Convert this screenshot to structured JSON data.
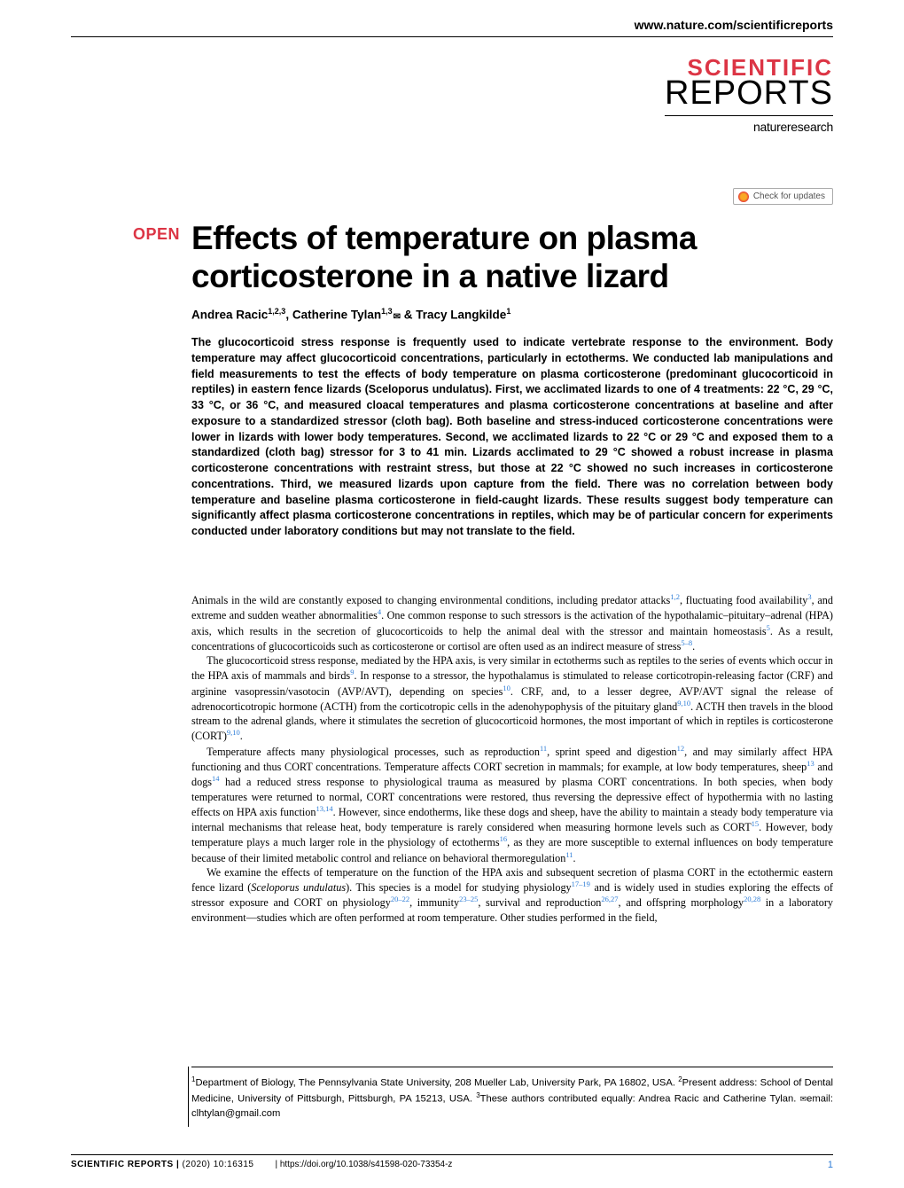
{
  "header": {
    "url": "www.nature.com/scientificreports",
    "logo_scientific": "SCIENTIFIC",
    "logo_reports": "REPORTS",
    "logo_nature": "natureresearch",
    "check_updates": "Check for updates"
  },
  "colors": {
    "accent_red": "#dc3545",
    "link_blue": "#2e7dd7",
    "text_black": "#000000",
    "background": "#ffffff"
  },
  "badge": {
    "open": "OPEN"
  },
  "title": "Effects of temperature on plasma corticosterone in a native lizard",
  "authors_html": "Andrea Racic<sup>1,2,3</sup>, Catherine Tylan<sup>1,3</sup><span class='envelope-icon'>✉</span> & Tracy Langkilde<sup>1</sup>",
  "abstract": "The glucocorticoid stress response is frequently used to indicate vertebrate response to the environment. Body temperature may affect glucocorticoid concentrations, particularly in ectotherms. We conducted lab manipulations and field measurements to test the effects of body temperature on plasma corticosterone (predominant glucocorticoid in reptiles) in eastern fence lizards (Sceloporus undulatus). First, we acclimated lizards to one of 4 treatments: 22 °C, 29 °C, 33 °C, or 36 °C, and measured cloacal temperatures and plasma corticosterone concentrations at baseline and after exposure to a standardized stressor (cloth bag). Both baseline and stress-induced corticosterone concentrations were lower in lizards with lower body temperatures. Second, we acclimated lizards to 22 °C or 29 °C and exposed them to a standardized (cloth bag) stressor for 3 to 41 min. Lizards acclimated to 29 °C showed a robust increase in plasma corticosterone concentrations with restraint stress, but those at 22 °C showed no such increases in corticosterone concentrations. Third, we measured lizards upon capture from the field. There was no correlation between body temperature and baseline plasma corticosterone in field-caught lizards. These results suggest body temperature can significantly affect plasma corticosterone concentrations in reptiles, which may be of particular concern for experiments conducted under laboratory conditions but may not translate to the field.",
  "body": {
    "p1": "Animals in the wild are constantly exposed to changing environmental conditions, including predator attacks<sup>1,2</sup>, fluctuating food availability<sup>3</sup>, and extreme and sudden weather abnormalities<sup>4</sup>. One common response to such stressors is the activation of the hypothalamic–pituitary–adrenal (HPA) axis, which results in the secretion of glucocorticoids to help the animal deal with the stressor and maintain homeostasis<sup>5</sup>. As a result, concentrations of glucocorticoids such as corticosterone or cortisol are often used as an indirect measure of stress<sup>5–8</sup>.",
    "p2": "The glucocorticoid stress response, mediated by the HPA axis, is very similar in ectotherms such as reptiles to the series of events which occur in the HPA axis of mammals and birds<sup>9</sup>. In response to a stressor, the hypothalamus is stimulated to release corticotropin-releasing factor (CRF) and arginine vasopressin/vasotocin (AVP/AVT), depending on species<sup>10</sup>. CRF, and, to a lesser degree, AVP/AVT signal the release of adrenocorticotropic hormone (ACTH) from the corticotropic cells in the adenohypophysis of the pituitary gland<sup>9,10</sup>. ACTH then travels in the blood stream to the adrenal glands, where it stimulates the secretion of glucocorticoid hormones, the most important of which in reptiles is corticosterone (CORT)<sup>9,10</sup>.",
    "p3": "Temperature affects many physiological processes, such as reproduction<sup>11</sup>, sprint speed and digestion<sup>12</sup>, and may similarly affect HPA functioning and thus CORT concentrations. Temperature affects CORT secretion in mammals; for example, at low body temperatures, sheep<sup>13</sup> and dogs<sup>14</sup> had a reduced stress response to physiological trauma as measured by plasma CORT concentrations. In both species, when body temperatures were returned to normal, CORT concentrations were restored, thus reversing the depressive effect of hypothermia with no lasting effects on HPA axis function<sup>13,14</sup>. However, since endotherms, like these dogs and sheep, have the ability to maintain a steady body temperature via internal mechanisms that release heat, body temperature is rarely considered when measuring hormone levels such as CORT<sup>15</sup>. However, body temperature plays a much larger role in the physiology of ectotherms<sup>16</sup>, as they are more susceptible to external influences on body temperature because of their limited metabolic control and reliance on behavioral thermoregulation<sup>11</sup>.",
    "p4": "We examine the effects of temperature on the function of the HPA axis and subsequent secretion of plasma CORT in the ectothermic eastern fence lizard (<em>Sceloporus undulatus</em>). This species is a model for studying physiology<sup>17–19</sup> and is widely used in studies exploring the effects of stressor exposure and CORT on physiology<sup>20–22</sup>, immunity<sup>23–25</sup>, survival and reproduction<sup>26,27</sup>, and offspring morphology<sup>20,28</sup> in a laboratory environment—studies which are often performed at room temperature. Other studies performed in the field,"
  },
  "affiliations_html": "<sup>1</sup>Department of Biology, The Pennsylvania State University, 208 Mueller Lab, University Park, PA 16802, USA. <sup>2</sup>Present address: School of Dental Medicine, University of Pittsburgh, Pittsburgh, PA 15213, USA. <sup>3</sup>These authors contributed equally: Andrea Racic and Catherine Tylan. <span class='aff-envelope'>✉</span>email: clhtylan@gmail.com",
  "footer": {
    "journal": "SCIENTIFIC REPORTS",
    "citation": "(2020) 10:16315",
    "doi": "| https://doi.org/10.1038/s41598-020-73354-z",
    "page": "1"
  }
}
